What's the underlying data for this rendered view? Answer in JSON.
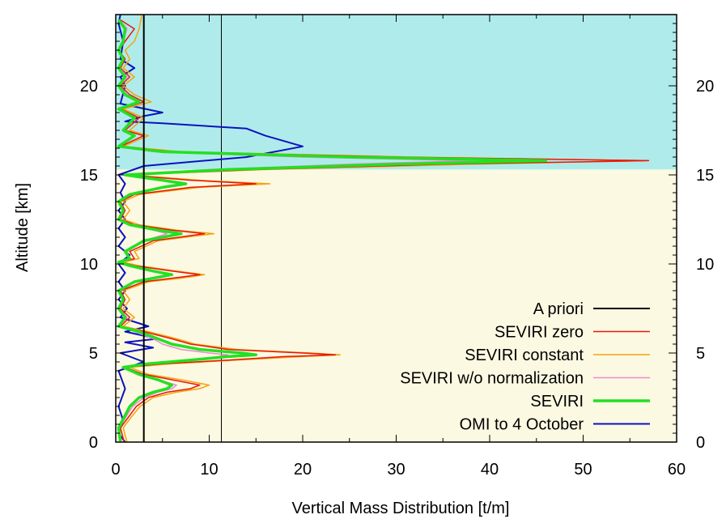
{
  "chart_data": {
    "type": "line",
    "xlabel": "Vertical Mass Distribution [t/m]",
    "ylabel": "Altitude [km]",
    "xlim": [
      0,
      60
    ],
    "ylim": [
      0,
      24
    ],
    "x_ticks": [
      "0",
      "10",
      "20",
      "30",
      "40",
      "50",
      "60"
    ],
    "y_ticks": [
      "0",
      "5",
      "10",
      "15",
      "20"
    ],
    "y_ticks_right": [
      "0",
      "5",
      "10",
      "15",
      "20"
    ],
    "grid": false,
    "legend_position": "lower-right",
    "shaded_regions": [
      {
        "y_from": 15.3,
        "y_to": 24,
        "color": "#b0ebeb"
      },
      {
        "y_from": 0,
        "y_to": 15.3,
        "color": "#fbf9e2"
      }
    ],
    "reference_lines": [
      {
        "x": 11.3,
        "color": "#000000"
      }
    ],
    "series": [
      {
        "name": "A priori",
        "color": "#000000",
        "width": 2,
        "points": [
          [
            3.0,
            0
          ],
          [
            3.0,
            24
          ]
        ]
      },
      {
        "name": "SEVIRI zero",
        "color": "#e8170f",
        "width": 1.5,
        "points": [
          [
            0.9,
            0
          ],
          [
            0.5,
            0.8
          ],
          [
            1.5,
            1.5
          ],
          [
            2.2,
            2.0
          ],
          [
            3.5,
            2.5
          ],
          [
            5.5,
            2.8
          ],
          [
            8.0,
            3.0
          ],
          [
            9.0,
            3.2
          ],
          [
            6.0,
            3.5
          ],
          [
            3.0,
            3.8
          ],
          [
            1.0,
            4.2
          ],
          [
            5.0,
            4.4
          ],
          [
            12.0,
            4.6
          ],
          [
            18.0,
            4.8
          ],
          [
            23.5,
            4.9
          ],
          [
            20.0,
            5.0
          ],
          [
            12.0,
            5.2
          ],
          [
            8.0,
            5.5
          ],
          [
            6.0,
            5.8
          ],
          [
            3.0,
            6.2
          ],
          [
            0.5,
            6.5
          ],
          [
            1.5,
            7.0
          ],
          [
            0.5,
            7.5
          ],
          [
            1.0,
            8.0
          ],
          [
            0.5,
            8.5
          ],
          [
            3.0,
            9.0
          ],
          [
            6.0,
            9.2
          ],
          [
            9.0,
            9.4
          ],
          [
            6.0,
            9.6
          ],
          [
            2.0,
            9.9
          ],
          [
            0.5,
            10.1
          ],
          [
            2.0,
            10.3
          ],
          [
            1.5,
            10.7
          ],
          [
            4.0,
            11.3
          ],
          [
            9.5,
            11.7
          ],
          [
            6.0,
            11.9
          ],
          [
            2.0,
            12.2
          ],
          [
            0.5,
            12.5
          ],
          [
            1.0,
            13.0
          ],
          [
            0.5,
            13.5
          ],
          [
            2.0,
            13.9
          ],
          [
            8.0,
            14.3
          ],
          [
            15.0,
            14.5
          ],
          [
            8.0,
            14.7
          ],
          [
            1.0,
            15.0
          ],
          [
            15.0,
            15.3
          ],
          [
            35.0,
            15.6
          ],
          [
            57.0,
            15.8
          ],
          [
            30.0,
            16.0
          ],
          [
            6.0,
            16.3
          ],
          [
            0.5,
            16.6
          ],
          [
            3.0,
            17.2
          ],
          [
            1.0,
            17.5
          ],
          [
            2.5,
            18.2
          ],
          [
            0.5,
            18.7
          ],
          [
            3.0,
            19.1
          ],
          [
            1.5,
            19.5
          ],
          [
            0.5,
            20.0
          ],
          [
            1.5,
            20.5
          ],
          [
            0.5,
            21.0
          ],
          [
            1.0,
            21.5
          ],
          [
            0.3,
            22.0
          ],
          [
            1.0,
            22.5
          ],
          [
            2.0,
            23.2
          ],
          [
            0.5,
            23.7
          ]
        ]
      },
      {
        "name": "SEVIRI constant",
        "color": "#f5a30f",
        "width": 1.5,
        "points": [
          [
            1.2,
            0
          ],
          [
            0.8,
            0.8
          ],
          [
            1.8,
            1.5
          ],
          [
            2.6,
            2.0
          ],
          [
            4.0,
            2.5
          ],
          [
            6.5,
            2.8
          ],
          [
            9.0,
            3.0
          ],
          [
            10.0,
            3.2
          ],
          [
            7.0,
            3.5
          ],
          [
            3.5,
            3.8
          ],
          [
            1.5,
            4.2
          ],
          [
            6.0,
            4.4
          ],
          [
            13.0,
            4.6
          ],
          [
            20.0,
            4.8
          ],
          [
            24.0,
            4.9
          ],
          [
            21.0,
            5.0
          ],
          [
            13.0,
            5.2
          ],
          [
            8.5,
            5.5
          ],
          [
            6.5,
            5.8
          ],
          [
            3.5,
            6.2
          ],
          [
            0.8,
            6.5
          ],
          [
            2.0,
            7.0
          ],
          [
            0.8,
            7.5
          ],
          [
            1.5,
            8.0
          ],
          [
            0.8,
            8.5
          ],
          [
            3.5,
            9.0
          ],
          [
            7.0,
            9.2
          ],
          [
            9.5,
            9.4
          ],
          [
            6.5,
            9.6
          ],
          [
            2.5,
            9.9
          ],
          [
            0.8,
            10.1
          ],
          [
            2.5,
            10.3
          ],
          [
            2.0,
            10.7
          ],
          [
            4.5,
            11.3
          ],
          [
            10.5,
            11.7
          ],
          [
            6.5,
            11.9
          ],
          [
            2.5,
            12.2
          ],
          [
            0.8,
            12.5
          ],
          [
            1.5,
            13.0
          ],
          [
            0.8,
            13.5
          ],
          [
            2.5,
            13.9
          ],
          [
            9.0,
            14.3
          ],
          [
            16.5,
            14.5
          ],
          [
            9.0,
            14.7
          ],
          [
            1.5,
            15.0
          ],
          [
            16.0,
            15.3
          ],
          [
            38.0,
            15.6
          ],
          [
            57.0,
            15.8
          ],
          [
            32.0,
            16.0
          ],
          [
            7.0,
            16.3
          ],
          [
            0.8,
            16.6
          ],
          [
            3.5,
            17.2
          ],
          [
            1.5,
            17.5
          ],
          [
            3.0,
            18.2
          ],
          [
            0.8,
            18.7
          ],
          [
            3.8,
            19.1
          ],
          [
            2.0,
            19.5
          ],
          [
            0.8,
            20.0
          ],
          [
            2.0,
            20.5
          ],
          [
            0.8,
            21.0
          ],
          [
            1.5,
            21.5
          ],
          [
            1.0,
            22.0
          ],
          [
            2.0,
            22.5
          ],
          [
            2.5,
            23.2
          ],
          [
            2.8,
            24.0
          ]
        ]
      },
      {
        "name": "SEVIRI w/o normalization",
        "color": "#ee88d2",
        "width": 1.5,
        "points": [
          [
            0.6,
            0
          ],
          [
            0.4,
            0.8
          ],
          [
            1.2,
            1.5
          ],
          [
            1.8,
            2.0
          ],
          [
            3.0,
            2.5
          ],
          [
            4.5,
            2.8
          ],
          [
            6.0,
            3.0
          ],
          [
            6.5,
            3.2
          ],
          [
            4.5,
            3.5
          ],
          [
            2.5,
            3.8
          ],
          [
            0.8,
            4.2
          ],
          [
            4.0,
            4.4
          ],
          [
            8.0,
            4.6
          ],
          [
            11.0,
            4.8
          ],
          [
            12.0,
            4.9
          ],
          [
            10.0,
            5.0
          ],
          [
            7.0,
            5.2
          ],
          [
            5.0,
            5.5
          ],
          [
            4.0,
            5.8
          ],
          [
            2.0,
            6.2
          ],
          [
            0.4,
            6.5
          ],
          [
            1.2,
            7.0
          ],
          [
            0.4,
            7.5
          ],
          [
            0.8,
            8.0
          ],
          [
            0.4,
            8.5
          ],
          [
            2.0,
            9.0
          ],
          [
            4.0,
            9.2
          ],
          [
            5.5,
            9.4
          ],
          [
            4.0,
            9.6
          ],
          [
            1.5,
            9.9
          ],
          [
            0.4,
            10.1
          ],
          [
            1.5,
            10.3
          ],
          [
            1.2,
            10.7
          ],
          [
            3.0,
            11.3
          ],
          [
            5.5,
            11.7
          ],
          [
            4.0,
            11.9
          ],
          [
            1.5,
            12.2
          ],
          [
            0.4,
            12.5
          ],
          [
            0.8,
            13.0
          ],
          [
            0.4,
            13.5
          ],
          [
            1.5,
            13.9
          ],
          [
            5.0,
            14.3
          ],
          [
            7.0,
            14.5
          ],
          [
            5.0,
            14.7
          ],
          [
            0.8,
            15.0
          ],
          [
            10.0,
            15.3
          ],
          [
            25.0,
            15.6
          ],
          [
            38.0,
            15.8
          ],
          [
            20.0,
            16.0
          ],
          [
            4.0,
            16.3
          ],
          [
            0.4,
            16.6
          ],
          [
            2.0,
            17.2
          ],
          [
            0.8,
            17.5
          ],
          [
            2.0,
            18.2
          ],
          [
            0.4,
            18.7
          ],
          [
            2.5,
            19.1
          ],
          [
            1.2,
            19.5
          ],
          [
            0.4,
            20.0
          ],
          [
            1.2,
            20.5
          ],
          [
            0.4,
            21.0
          ],
          [
            0.8,
            21.5
          ],
          [
            0.3,
            22.0
          ],
          [
            0.8,
            22.5
          ],
          [
            1.2,
            23.2
          ],
          [
            0.4,
            23.7
          ]
        ]
      },
      {
        "name": "SEVIRI",
        "color": "#22e022",
        "width": 3.5,
        "points": [
          [
            0.5,
            0
          ],
          [
            0.3,
            0.8
          ],
          [
            1.0,
            1.5
          ],
          [
            1.5,
            2.0
          ],
          [
            2.5,
            2.5
          ],
          [
            4.0,
            2.8
          ],
          [
            5.5,
            3.0
          ],
          [
            6.0,
            3.2
          ],
          [
            4.5,
            3.5
          ],
          [
            2.5,
            3.8
          ],
          [
            0.8,
            4.2
          ],
          [
            3.5,
            4.4
          ],
          [
            8.0,
            4.6
          ],
          [
            12.0,
            4.8
          ],
          [
            15.0,
            4.9
          ],
          [
            13.5,
            5.0
          ],
          [
            9.0,
            5.2
          ],
          [
            6.0,
            5.5
          ],
          [
            4.5,
            5.8
          ],
          [
            2.5,
            6.2
          ],
          [
            0.3,
            6.5
          ],
          [
            1.0,
            7.0
          ],
          [
            0.3,
            7.5
          ],
          [
            0.8,
            8.0
          ],
          [
            0.3,
            8.5
          ],
          [
            2.0,
            9.0
          ],
          [
            4.0,
            9.2
          ],
          [
            6.0,
            9.4
          ],
          [
            4.0,
            9.6
          ],
          [
            1.5,
            9.9
          ],
          [
            0.3,
            10.1
          ],
          [
            1.5,
            10.3
          ],
          [
            1.0,
            10.7
          ],
          [
            3.0,
            11.3
          ],
          [
            7.0,
            11.7
          ],
          [
            4.5,
            11.9
          ],
          [
            1.5,
            12.2
          ],
          [
            0.3,
            12.5
          ],
          [
            0.8,
            13.0
          ],
          [
            0.3,
            13.5
          ],
          [
            1.5,
            13.9
          ],
          [
            5.0,
            14.3
          ],
          [
            7.5,
            14.5
          ],
          [
            5.0,
            14.7
          ],
          [
            1.0,
            15.0
          ],
          [
            12.0,
            15.3
          ],
          [
            30.0,
            15.6
          ],
          [
            46.0,
            15.8
          ],
          [
            25.0,
            16.0
          ],
          [
            5.0,
            16.3
          ],
          [
            0.3,
            16.6
          ],
          [
            2.0,
            17.2
          ],
          [
            0.8,
            17.5
          ],
          [
            2.0,
            18.2
          ],
          [
            0.3,
            18.7
          ],
          [
            2.5,
            19.1
          ],
          [
            1.0,
            19.5
          ],
          [
            0.3,
            20.0
          ],
          [
            1.0,
            20.5
          ],
          [
            0.3,
            21.0
          ],
          [
            0.8,
            21.5
          ],
          [
            0.3,
            22.0
          ],
          [
            0.8,
            22.5
          ],
          [
            1.0,
            23.2
          ],
          [
            0.3,
            23.7
          ]
        ]
      },
      {
        "name": "OMI to 4 October",
        "color": "#0c12c0",
        "width": 2,
        "points": [
          [
            1.0,
            0
          ],
          [
            0.3,
            0.5
          ],
          [
            0.8,
            1.2
          ],
          [
            0.3,
            2.0
          ],
          [
            1.0,
            3.0
          ],
          [
            0.3,
            4.0
          ],
          [
            3.0,
            4.5
          ],
          [
            0.5,
            5.0
          ],
          [
            4.0,
            5.3
          ],
          [
            1.0,
            5.6
          ],
          [
            4.5,
            5.8
          ],
          [
            1.0,
            6.2
          ],
          [
            3.5,
            6.5
          ],
          [
            0.5,
            7.0
          ],
          [
            1.2,
            7.5
          ],
          [
            0.3,
            8.0
          ],
          [
            1.0,
            8.5
          ],
          [
            0.3,
            9.0
          ],
          [
            1.0,
            9.5
          ],
          [
            0.3,
            10.0
          ],
          [
            1.5,
            10.5
          ],
          [
            0.3,
            11.0
          ],
          [
            1.0,
            11.5
          ],
          [
            0.3,
            12.0
          ],
          [
            1.0,
            12.5
          ],
          [
            0.3,
            13.0
          ],
          [
            1.0,
            13.5
          ],
          [
            0.5,
            14.0
          ],
          [
            1.0,
            14.5
          ],
          [
            0.3,
            15.0
          ],
          [
            3.0,
            15.5
          ],
          [
            14.0,
            16.0
          ],
          [
            20.0,
            16.6
          ],
          [
            16.0,
            17.2
          ],
          [
            14.0,
            17.6
          ],
          [
            5.0,
            17.9
          ],
          [
            1.0,
            18.0
          ],
          [
            3.0,
            18.3
          ],
          [
            5.0,
            18.5
          ],
          [
            0.5,
            19.0
          ],
          [
            1.0,
            20.0
          ],
          [
            0.5,
            20.5
          ],
          [
            2.0,
            21.0
          ],
          [
            0.5,
            21.5
          ],
          [
            0.8,
            22.5
          ],
          [
            0.3,
            23.5
          ],
          [
            0.5,
            24.0
          ]
        ]
      }
    ]
  }
}
